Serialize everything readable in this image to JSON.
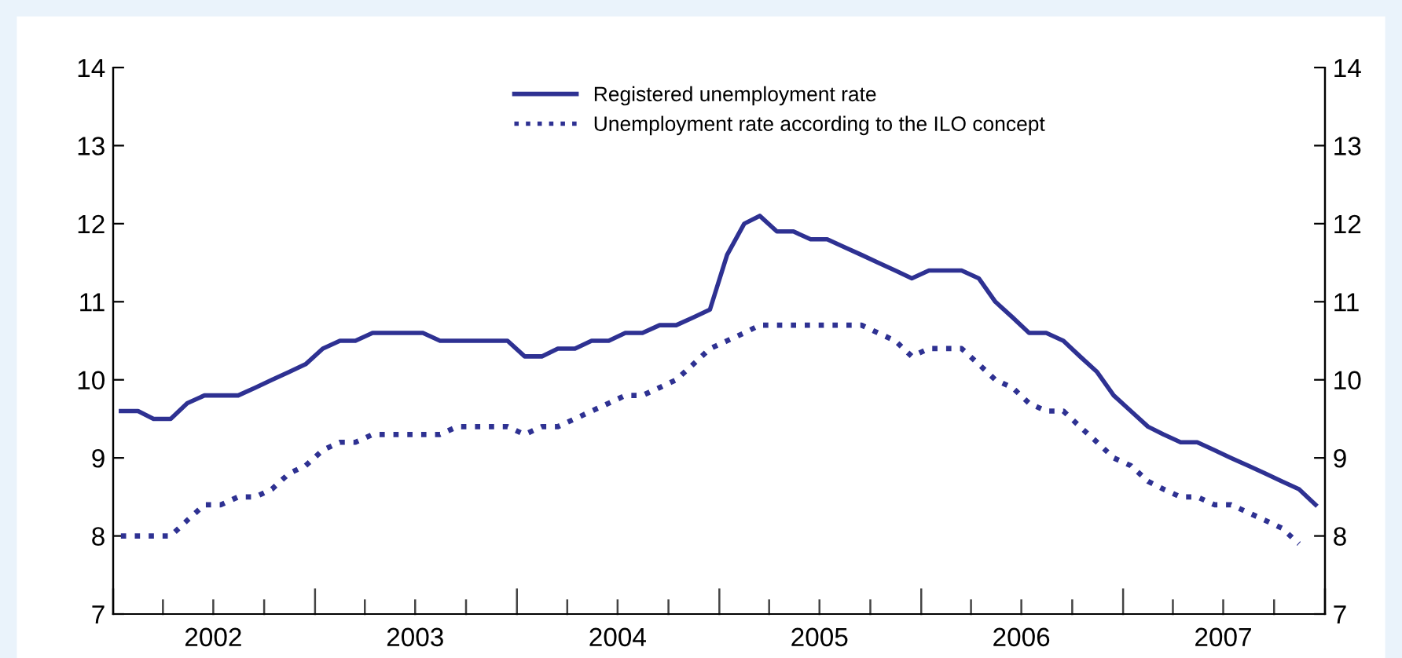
{
  "chart_data": {
    "type": "line",
    "legend": "top",
    "grid": false,
    "x": [
      "2002-01-15",
      "2002-02-15",
      "2002-03-15",
      "2002-04-15",
      "2002-05-15",
      "2002-06-15",
      "2002-07-15",
      "2002-08-15",
      "2002-09-15",
      "2002-10-15",
      "2002-11-15",
      "2002-12-15",
      "2003-01-15",
      "2003-02-15",
      "2003-03-15",
      "2003-04-15",
      "2003-05-15",
      "2003-06-15",
      "2003-07-15",
      "2003-08-15",
      "2003-09-15",
      "2003-10-15",
      "2003-11-15",
      "2003-12-15",
      "2004-01-15",
      "2004-02-15",
      "2004-03-15",
      "2004-04-15",
      "2004-05-15",
      "2004-06-15",
      "2004-07-15",
      "2004-08-15",
      "2004-09-15",
      "2004-10-15",
      "2004-11-15",
      "2004-12-15",
      "2005-01-15",
      "2005-02-15",
      "2005-03-15",
      "2005-04-15",
      "2005-05-15",
      "2005-06-15",
      "2005-07-15",
      "2005-08-15",
      "2005-09-15",
      "2005-10-15",
      "2005-11-15",
      "2005-12-15",
      "2006-01-15",
      "2006-02-15",
      "2006-03-15",
      "2006-04-15",
      "2006-05-15",
      "2006-06-15",
      "2006-07-15",
      "2006-08-15",
      "2006-09-15",
      "2006-10-15",
      "2006-11-15",
      "2006-12-15",
      "2007-01-15",
      "2007-02-15",
      "2007-03-15",
      "2007-04-15",
      "2007-05-15",
      "2007-06-15",
      "2007-07-15",
      "2007-08-15",
      "2007-09-15",
      "2007-10-15",
      "2007-11-15",
      "2007-12-15"
    ],
    "series": [
      {
        "name": "Registered unemployment rate",
        "color": "#2e3192",
        "line_style": "solid",
        "values": [
          9.6,
          9.6,
          9.5,
          9.5,
          9.7,
          9.8,
          9.8,
          9.8,
          9.9,
          10.0,
          10.1,
          10.2,
          10.4,
          10.5,
          10.5,
          10.6,
          10.6,
          10.6,
          10.6,
          10.5,
          10.5,
          10.5,
          10.5,
          10.5,
          10.3,
          10.3,
          10.4,
          10.4,
          10.5,
          10.5,
          10.6,
          10.6,
          10.7,
          10.7,
          10.8,
          10.9,
          11.6,
          12.0,
          12.1,
          11.9,
          11.9,
          11.8,
          11.8,
          11.7,
          11.6,
          11.5,
          11.4,
          11.3,
          11.4,
          11.4,
          11.4,
          11.3,
          11.0,
          10.8,
          10.6,
          10.6,
          10.5,
          10.3,
          10.1,
          9.8,
          9.6,
          9.4,
          9.3,
          9.2,
          9.2,
          9.1,
          9.0,
          8.9,
          8.8,
          8.7,
          8.6,
          8.4
        ]
      },
      {
        "name": "Unemployment rate according to the ILO concept",
        "color": "#2e3192",
        "line_style": "dotted",
        "values": [
          8.0,
          8.0,
          8.0,
          8.0,
          8.2,
          8.4,
          8.4,
          8.5,
          8.5,
          8.6,
          8.8,
          8.9,
          9.1,
          9.2,
          9.2,
          9.3,
          9.3,
          9.3,
          9.3,
          9.3,
          9.4,
          9.4,
          9.4,
          9.4,
          9.3,
          9.4,
          9.4,
          9.5,
          9.6,
          9.7,
          9.8,
          9.8,
          9.9,
          10.0,
          10.2,
          10.4,
          10.5,
          10.6,
          10.7,
          10.7,
          10.7,
          10.7,
          10.7,
          10.7,
          10.7,
          10.6,
          10.5,
          10.3,
          10.4,
          10.4,
          10.4,
          10.2,
          10.0,
          9.9,
          9.7,
          9.6,
          9.6,
          9.4,
          9.2,
          9.0,
          8.9,
          8.7,
          8.6,
          8.5,
          8.5,
          8.4,
          8.4,
          8.3,
          8.2,
          8.1,
          7.9,
          null
        ]
      }
    ],
    "xlim": [
      "2002-01-01",
      "2008-01-01"
    ],
    "xticks": [
      {
        "value": "2002-01-01",
        "label": null
      },
      {
        "value": "2002-04-01",
        "label": null
      },
      {
        "value": "2002-07-01",
        "label": "2002"
      },
      {
        "value": "2002-10-01",
        "label": null
      },
      {
        "value": "2003-01-01",
        "label": null
      },
      {
        "value": "2003-04-01",
        "label": null
      },
      {
        "value": "2003-07-01",
        "label": "2003"
      },
      {
        "value": "2003-10-01",
        "label": null
      },
      {
        "value": "2004-01-01",
        "label": null
      },
      {
        "value": "2004-04-01",
        "label": null
      },
      {
        "value": "2004-07-01",
        "label": "2004"
      },
      {
        "value": "2004-10-01",
        "label": null
      },
      {
        "value": "2005-01-01",
        "label": null
      },
      {
        "value": "2005-04-01",
        "label": null
      },
      {
        "value": "2005-07-01",
        "label": "2005"
      },
      {
        "value": "2005-10-01",
        "label": null
      },
      {
        "value": "2006-01-01",
        "label": null
      },
      {
        "value": "2006-04-01",
        "label": null
      },
      {
        "value": "2006-07-01",
        "label": "2006"
      },
      {
        "value": "2006-10-01",
        "label": null
      },
      {
        "value": "2007-01-01",
        "label": null
      },
      {
        "value": "2007-04-01",
        "label": null
      },
      {
        "value": "2007-07-01",
        "label": "2007"
      },
      {
        "value": "2007-10-01",
        "label": null
      },
      {
        "value": "2008-01-01",
        "label": null
      }
    ],
    "ylim": [
      7,
      14
    ],
    "yticks": [
      7,
      8,
      9,
      10,
      11,
      12,
      13,
      14
    ],
    "y2lim": [
      7,
      14
    ],
    "y2ticks": [
      7,
      8,
      9,
      10,
      11,
      12,
      13,
      14
    ]
  }
}
